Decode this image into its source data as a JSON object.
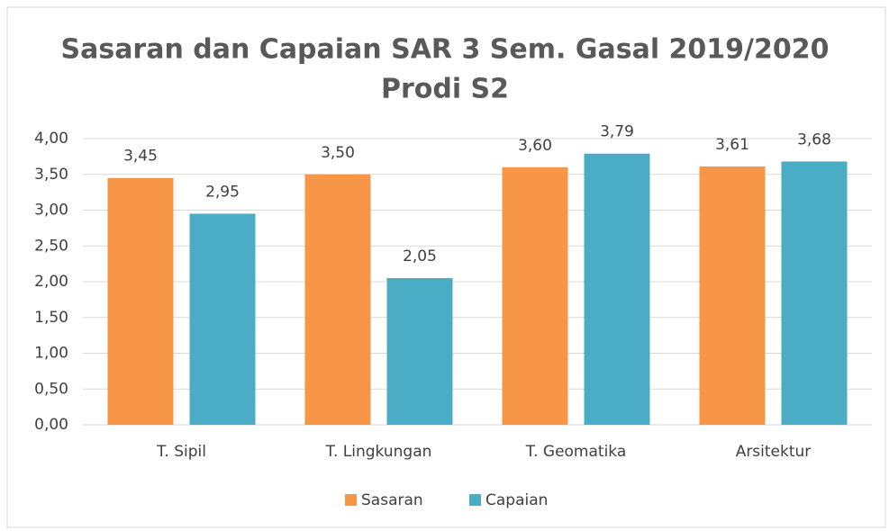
{
  "chart_data": {
    "type": "bar",
    "title": [
      "Sasaran dan Capaian SAR 3 Sem. Gasal 2019/2020",
      "Prodi S2"
    ],
    "categories": [
      "T. Sipil",
      "T. Lingkungan",
      "T. Geomatika",
      "Arsitektur"
    ],
    "series": [
      {
        "name": "Sasaran",
        "color": "#f79646",
        "values": [
          3.45,
          3.5,
          3.6,
          3.61
        ],
        "value_labels": [
          "3,45",
          "3,50",
          "3,60",
          "3,61"
        ]
      },
      {
        "name": "Capaian",
        "color": "#4bacc6",
        "values": [
          2.95,
          2.05,
          3.79,
          3.68
        ],
        "value_labels": [
          "2,95",
          "2,05",
          "3,79",
          "3,68"
        ]
      }
    ],
    "ylim": [
      0,
      4
    ],
    "yticks": [
      {
        "value": 0,
        "label": "0,00"
      },
      {
        "value": 0.5,
        "label": "0,50"
      },
      {
        "value": 1,
        "label": "1,00"
      },
      {
        "value": 1.5,
        "label": "1,50"
      },
      {
        "value": 2,
        "label": "2,00"
      },
      {
        "value": 2.5,
        "label": "2,50"
      },
      {
        "value": 3,
        "label": "3,00"
      },
      {
        "value": 3.5,
        "label": "3,50"
      },
      {
        "value": 4,
        "label": "4,00"
      }
    ],
    "grid": true,
    "legend": "bottom"
  }
}
